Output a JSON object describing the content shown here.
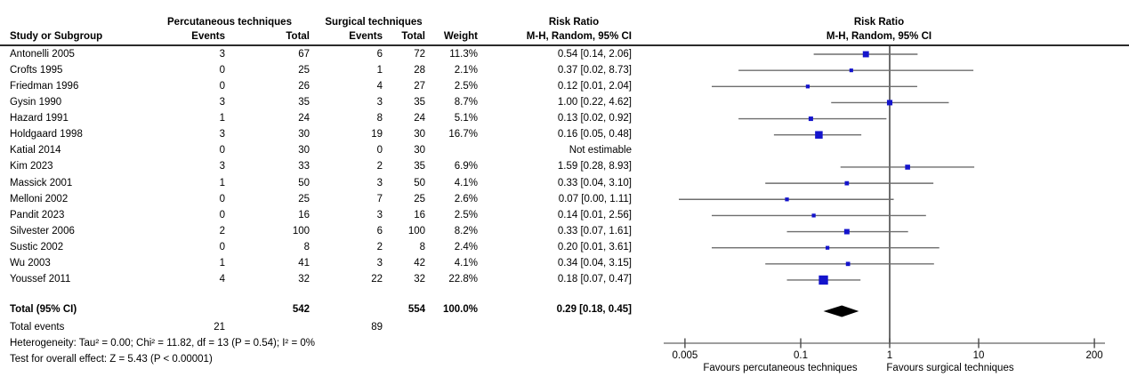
{
  "figure": {
    "header": {
      "group_pct": "Percutaneous techniques",
      "group_surg": "Surgical techniques",
      "col_study": "Study or Subgroup",
      "col_events_pct": "Events",
      "col_total_pct": "Total",
      "col_events_surg": "Events",
      "col_total_surg": "Total",
      "col_weight": "Weight",
      "rr_title_table": "Risk Ratio",
      "rr_subtitle_table": "M-H, Random, 95% CI",
      "rr_title_plot": "Risk Ratio",
      "rr_subtitle_plot": "M-H, Random, 95% CI"
    },
    "footer": {
      "total_label": "Total (95% CI)",
      "total_events_label": "Total events",
      "heterogeneity": "Heterogeneity: Tau² = 0.00; Chi² = 11.82, df = 13 (P = 0.54); I² = 0%",
      "overall_effect": "Test for overall effect: Z = 5.43 (P < 0.00001)"
    },
    "axis": {
      "favours_left": "Favours percutaneous techniques",
      "favours_right": "Favours surgical techniques"
    }
  },
  "chart_data": {
    "type": "forest",
    "x_scale": "log",
    "x_ticks": [
      0.005,
      0.1,
      1,
      10,
      200
    ],
    "x_tick_labels": [
      "0.005",
      "0.1",
      "1",
      "10",
      "200"
    ],
    "null_line": 1,
    "marker_color": "#1414CC",
    "ci_line_color": "#6e6e6e",
    "diamond_color": "#000000",
    "studies": [
      {
        "name": "Antonelli 2005",
        "events_pct": 3,
        "total_pct": 67,
        "events_surg": 6,
        "total_surg": 72,
        "weight": "11.3%",
        "weight_pct": 11.3,
        "rr_label": "0.54 [0.14, 2.06]",
        "rr": 0.54,
        "ci_low": 0.14,
        "ci_high": 2.06
      },
      {
        "name": "Crofts 1995",
        "events_pct": 0,
        "total_pct": 25,
        "events_surg": 1,
        "total_surg": 28,
        "weight": "2.1%",
        "weight_pct": 2.1,
        "rr_label": "0.37 [0.02, 8.73]",
        "rr": 0.37,
        "ci_low": 0.02,
        "ci_high": 8.73
      },
      {
        "name": "Friedman 1996",
        "events_pct": 0,
        "total_pct": 26,
        "events_surg": 4,
        "total_surg": 27,
        "weight": "2.5%",
        "weight_pct": 2.5,
        "rr_label": "0.12 [0.01, 2.04]",
        "rr": 0.12,
        "ci_low": 0.01,
        "ci_high": 2.04
      },
      {
        "name": "Gysin 1990",
        "events_pct": 3,
        "total_pct": 35,
        "events_surg": 3,
        "total_surg": 35,
        "weight": "8.7%",
        "weight_pct": 8.7,
        "rr_label": "1.00 [0.22, 4.62]",
        "rr": 1.0,
        "ci_low": 0.22,
        "ci_high": 4.62
      },
      {
        "name": "Hazard 1991",
        "events_pct": 1,
        "total_pct": 24,
        "events_surg": 8,
        "total_surg": 24,
        "weight": "5.1%",
        "weight_pct": 5.1,
        "rr_label": "0.13 [0.02, 0.92]",
        "rr": 0.13,
        "ci_low": 0.02,
        "ci_high": 0.92
      },
      {
        "name": "Holdgaard 1998",
        "events_pct": 3,
        "total_pct": 30,
        "events_surg": 19,
        "total_surg": 30,
        "weight": "16.7%",
        "weight_pct": 16.7,
        "rr_label": "0.16 [0.05, 0.48]",
        "rr": 0.16,
        "ci_low": 0.05,
        "ci_high": 0.48
      },
      {
        "name": "Katial 2014",
        "events_pct": 0,
        "total_pct": 30,
        "events_surg": 0,
        "total_surg": 30,
        "weight": "",
        "weight_pct": null,
        "rr_label": "Not estimable",
        "rr": null,
        "ci_low": null,
        "ci_high": null
      },
      {
        "name": "Kim 2023",
        "events_pct": 3,
        "total_pct": 33,
        "events_surg": 2,
        "total_surg": 35,
        "weight": "6.9%",
        "weight_pct": 6.9,
        "rr_label": "1.59 [0.28, 8.93]",
        "rr": 1.59,
        "ci_low": 0.28,
        "ci_high": 8.93
      },
      {
        "name": "Massick 2001",
        "events_pct": 1,
        "total_pct": 50,
        "events_surg": 3,
        "total_surg": 50,
        "weight": "4.1%",
        "weight_pct": 4.1,
        "rr_label": "0.33 [0.04, 3.10]",
        "rr": 0.33,
        "ci_low": 0.04,
        "ci_high": 3.1
      },
      {
        "name": "Melloni 2002",
        "events_pct": 0,
        "total_pct": 25,
        "events_surg": 7,
        "total_surg": 25,
        "weight": "2.6%",
        "weight_pct": 2.6,
        "rr_label": "0.07 [0.00, 1.11]",
        "rr": 0.07,
        "ci_low": 0.0,
        "ci_high": 1.11
      },
      {
        "name": "Pandit 2023",
        "events_pct": 0,
        "total_pct": 16,
        "events_surg": 3,
        "total_surg": 16,
        "weight": "2.5%",
        "weight_pct": 2.5,
        "rr_label": "0.14 [0.01, 2.56]",
        "rr": 0.14,
        "ci_low": 0.01,
        "ci_high": 2.56
      },
      {
        "name": "Silvester 2006",
        "events_pct": 2,
        "total_pct": 100,
        "events_surg": 6,
        "total_surg": 100,
        "weight": "8.2%",
        "weight_pct": 8.2,
        "rr_label": "0.33 [0.07, 1.61]",
        "rr": 0.33,
        "ci_low": 0.07,
        "ci_high": 1.61
      },
      {
        "name": "Sustic 2002",
        "events_pct": 0,
        "total_pct": 8,
        "events_surg": 2,
        "total_surg": 8,
        "weight": "2.4%",
        "weight_pct": 2.4,
        "rr_label": "0.20 [0.01, 3.61]",
        "rr": 0.2,
        "ci_low": 0.01,
        "ci_high": 3.61
      },
      {
        "name": "Wu 2003",
        "events_pct": 1,
        "total_pct": 41,
        "events_surg": 3,
        "total_surg": 42,
        "weight": "4.1%",
        "weight_pct": 4.1,
        "rr_label": "0.34 [0.04, 3.15]",
        "rr": 0.34,
        "ci_low": 0.04,
        "ci_high": 3.15
      },
      {
        "name": "Youssef 2011",
        "events_pct": 4,
        "total_pct": 32,
        "events_surg": 22,
        "total_surg": 32,
        "weight": "22.8%",
        "weight_pct": 22.8,
        "rr_label": "0.18 [0.07, 0.47]",
        "rr": 0.18,
        "ci_low": 0.07,
        "ci_high": 0.47
      }
    ],
    "total": {
      "total_pct": 542,
      "total_surg": 554,
      "weight": "100.0%",
      "rr_label": "0.29 [0.18, 0.45]",
      "rr": 0.29,
      "ci_low": 0.18,
      "ci_high": 0.45,
      "events_pct": 21,
      "events_surg": 89
    }
  }
}
